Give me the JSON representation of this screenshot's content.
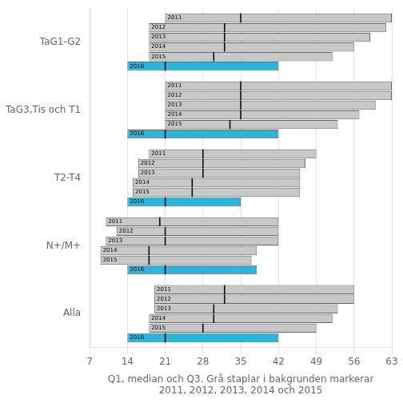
{
  "chart_data": {
    "type": "bar",
    "orientation": "horizontal",
    "xlabel": "Q1, median och Q3. Grå staplar i bakgrunden markerar\n2011, 2012, 2013, 2014 och 2015",
    "categories": [
      "TaG1-G2",
      "TaG3,Tis och T1",
      "T2-T4",
      "N+/M+",
      "Alla"
    ],
    "xlim": [
      7,
      63
    ],
    "xticks": [
      7,
      14,
      21,
      28,
      35,
      42,
      49,
      56,
      63
    ],
    "grid": true,
    "series": [
      {
        "name": "2011",
        "color": "#c8c8c8",
        "values": [
          [
            21,
            63
          ],
          [
            21,
            63
          ],
          [
            18,
            49
          ],
          [
            10,
            42
          ],
          [
            19,
            56
          ]
        ],
        "medians": [
          35,
          35,
          28,
          20,
          32
        ]
      },
      {
        "name": "2012",
        "color": "#c8c8c8",
        "values": [
          [
            18,
            62
          ],
          [
            21,
            63
          ],
          [
            16,
            47
          ],
          [
            12,
            42
          ],
          [
            19,
            56
          ]
        ],
        "medians": [
          32,
          35,
          28,
          21,
          32
        ]
      },
      {
        "name": "2013",
        "color": "#c8c8c8",
        "values": [
          [
            18,
            59
          ],
          [
            21,
            60
          ],
          [
            16,
            46
          ],
          [
            10,
            42
          ],
          [
            19,
            53
          ]
        ],
        "medians": [
          32,
          35,
          28,
          21,
          30
        ]
      },
      {
        "name": "2014",
        "color": "#c8c8c8",
        "values": [
          [
            18,
            56
          ],
          [
            21,
            57
          ],
          [
            15,
            46
          ],
          [
            9,
            38
          ],
          [
            18,
            52
          ]
        ],
        "medians": [
          32,
          35,
          26,
          18,
          30
        ]
      },
      {
        "name": "2015",
        "color": "#c8c8c8",
        "values": [
          [
            18,
            52
          ],
          [
            21,
            53
          ],
          [
            15,
            46
          ],
          [
            9,
            37
          ],
          [
            18,
            49
          ]
        ],
        "medians": [
          30,
          33,
          26,
          18,
          28
        ]
      },
      {
        "name": "2016",
        "color": "#29b6d8",
        "values": [
          [
            14,
            42
          ],
          [
            14,
            42
          ],
          [
            14,
            35
          ],
          [
            14,
            38
          ],
          [
            14,
            42
          ]
        ],
        "medians": [
          21,
          21,
          21,
          21,
          21
        ]
      }
    ]
  }
}
